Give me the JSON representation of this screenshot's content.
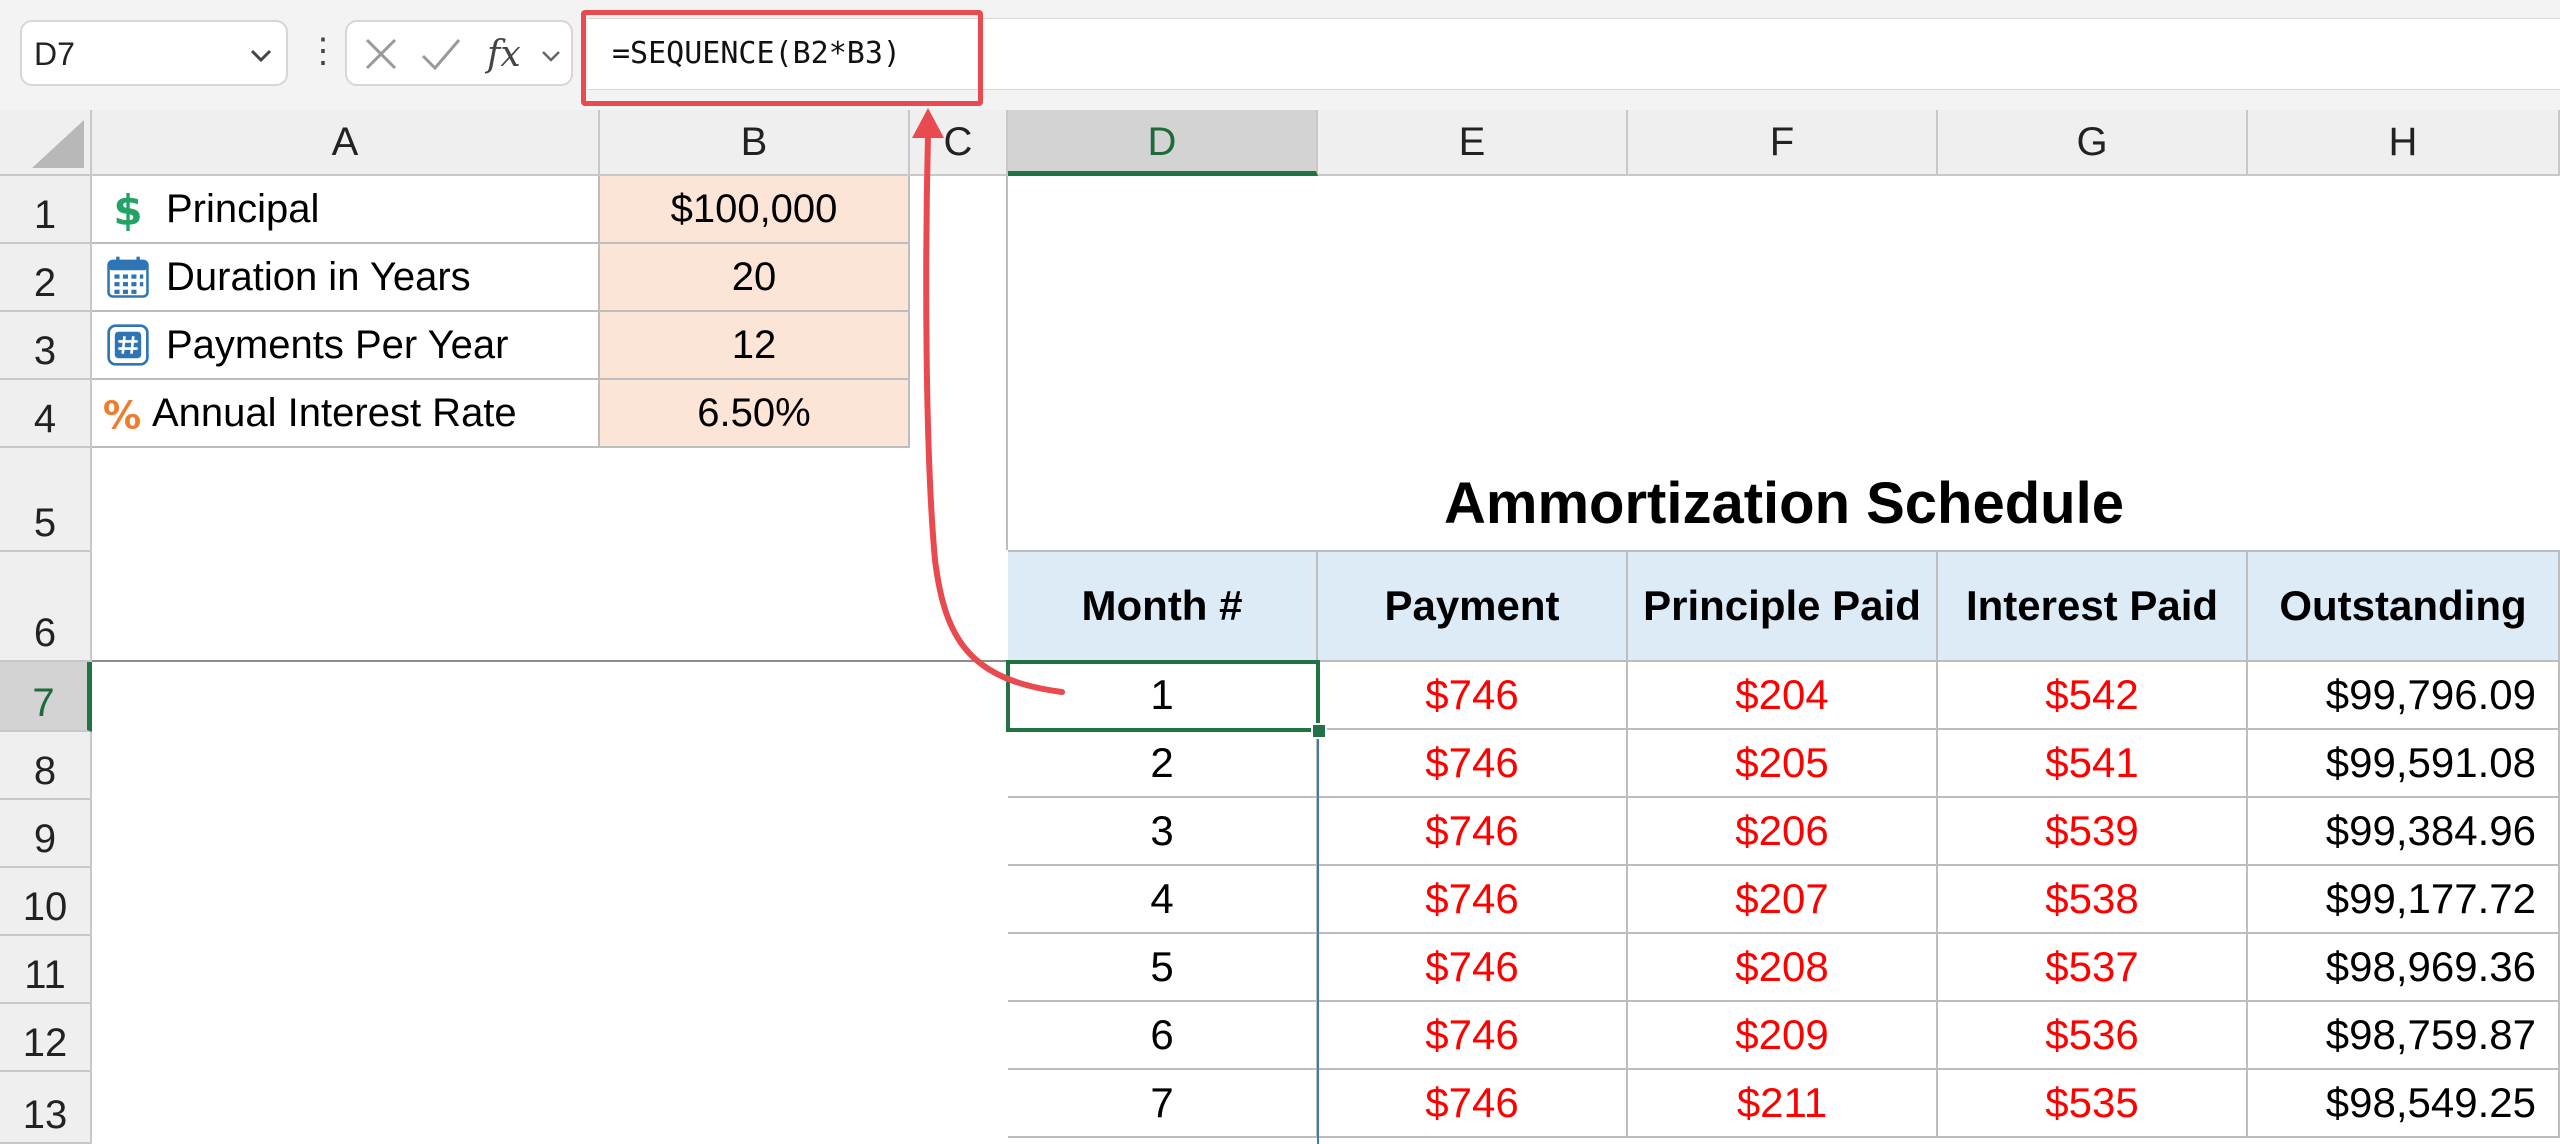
{
  "formula_bar": {
    "name_box": "D7",
    "fx_label": "fx",
    "formula": "=SEQUENCE(B2*B3)"
  },
  "columns": [
    "A",
    "B",
    "C",
    "D",
    "E",
    "F",
    "G",
    "H"
  ],
  "rows": [
    "1",
    "2",
    "3",
    "4",
    "5",
    "6",
    "7",
    "8",
    "9",
    "10",
    "11",
    "12",
    "13"
  ],
  "inputs": [
    {
      "label": "Principal",
      "value": "$100,000",
      "icon": "dollar-icon"
    },
    {
      "label": "Duration in Years",
      "value": "20",
      "icon": "calendar-icon"
    },
    {
      "label": "Payments Per Year",
      "value": "12",
      "icon": "hash-icon"
    },
    {
      "label": "Annual Interest Rate",
      "value": "6.50%",
      "icon": "percent-icon"
    }
  ],
  "schedule": {
    "title": "Ammortization Schedule",
    "headers": [
      "Month #",
      "Payment",
      "Principle Paid",
      "Interest Paid",
      "Outstanding"
    ],
    "rows": [
      [
        "1",
        "$746",
        "$204",
        "$542",
        "$99,796.09"
      ],
      [
        "2",
        "$746",
        "$205",
        "$541",
        "$99,591.08"
      ],
      [
        "3",
        "$746",
        "$206",
        "$539",
        "$99,384.96"
      ],
      [
        "4",
        "$746",
        "$207",
        "$538",
        "$99,177.72"
      ],
      [
        "5",
        "$746",
        "$208",
        "$537",
        "$98,969.36"
      ],
      [
        "6",
        "$746",
        "$209",
        "$536",
        "$98,759.87"
      ],
      [
        "7",
        "$746",
        "$211",
        "$535",
        "$98,549.25"
      ]
    ]
  },
  "colors": {
    "input_fill": "#fce4d6",
    "header_fill": "#ddebf7",
    "negative_red": "#ff0000",
    "selection_green": "#217346",
    "annotation_red": "#e84a4f"
  }
}
